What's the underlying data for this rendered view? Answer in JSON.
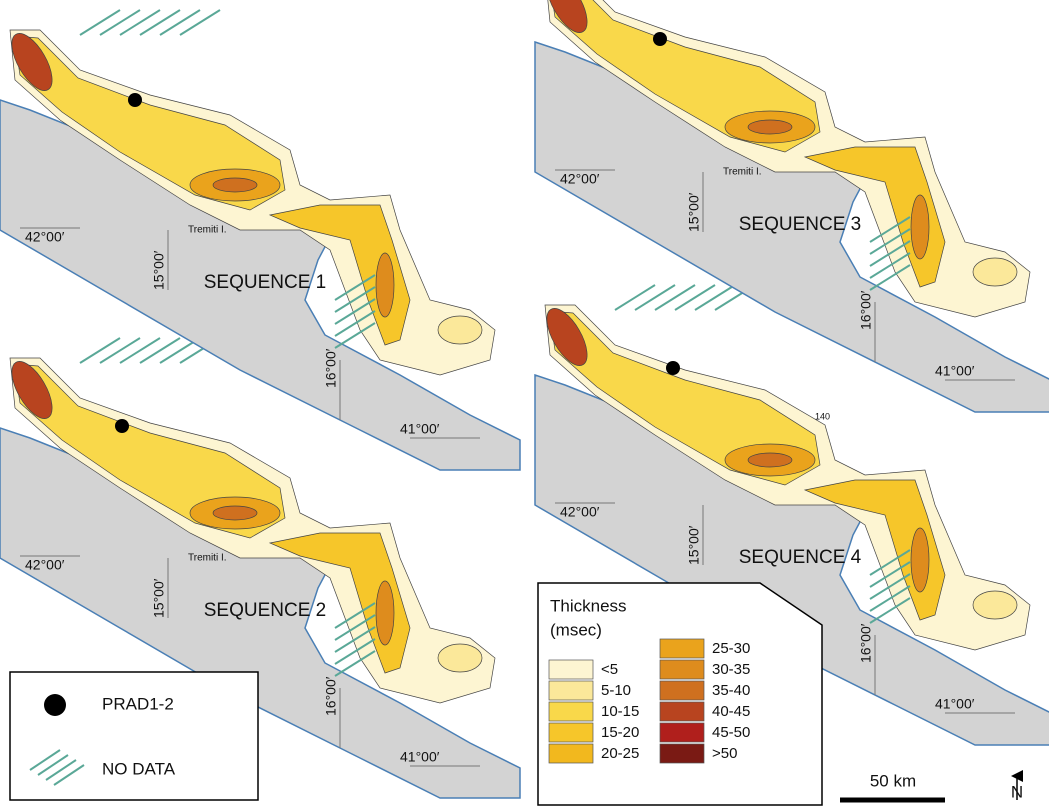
{
  "panels": [
    {
      "title": "SEQUENCE 1",
      "lat_north": "42°00′",
      "lon_west": "15°00′",
      "lon_east": "16°00′",
      "lat_south": "41°00′",
      "island": "Tremiti I."
    },
    {
      "title": "SEQUENCE 2",
      "lat_north": "42°00′",
      "lon_west": "15°00′",
      "lon_east": "16°00′",
      "lat_south": "41°00′",
      "island": "Tremiti I."
    },
    {
      "title": "SEQUENCE 3",
      "lat_north": "42°00′",
      "lon_west": "15°00′",
      "lon_east": "16°00′",
      "lat_south": "41°00′",
      "island": "Tremiti I."
    },
    {
      "title": "SEQUENCE 4",
      "lat_north": "42°00′",
      "lon_west": "15°00′",
      "lon_east": "16°00′",
      "lat_south": "41°00′",
      "contour": "140"
    }
  ],
  "legend": {
    "title": "Thickness",
    "unit": "(msec)",
    "classes": [
      {
        "label": "<5",
        "color": "#fdf5d2"
      },
      {
        "label": "5-10",
        "color": "#fbe89a"
      },
      {
        "label": "10-15",
        "color": "#f9d84a"
      },
      {
        "label": "15-20",
        "color": "#f6c62a"
      },
      {
        "label": "20-25",
        "color": "#f2b81e"
      },
      {
        "label": "25-30",
        "color": "#eaa31c"
      },
      {
        "label": "30-35",
        "color": "#de8c1d"
      },
      {
        "label": "35-40",
        "color": "#cf701f"
      },
      {
        "label": "40-45",
        "color": "#b8441f"
      },
      {
        "label": "45-50",
        "color": "#b01f1c"
      },
      {
        "label": ">50",
        "color": "#7a1a14"
      }
    ]
  },
  "key": {
    "well": "PRAD1-2",
    "no_data": "NO DATA"
  },
  "scale_bar": "50 km",
  "north": "N"
}
